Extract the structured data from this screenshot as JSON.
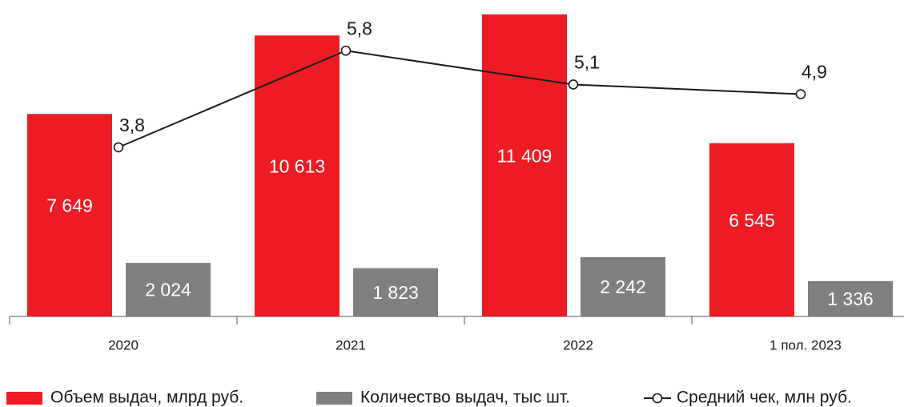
{
  "chart_data": {
    "type": "bar-line",
    "categories": [
      "2020",
      "2021",
      "2022",
      "1 пол. 2023"
    ],
    "series": [
      {
        "name": "Объем выдач, млрд руб.",
        "color": "#ed1c24",
        "type": "bar",
        "values": [
          7649,
          10613,
          11409,
          6545
        ],
        "value_labels": [
          "7 649",
          "10 613",
          "11 409",
          "6 545"
        ]
      },
      {
        "name": "Количество выдач, тыс шт.",
        "color": "#808083",
        "type": "bar",
        "values": [
          2024,
          1823,
          2242,
          1336
        ],
        "value_labels": [
          "2 024",
          "1 823",
          "2 242",
          "1 336"
        ]
      },
      {
        "name": "Средний чек, млн руб.",
        "color": "#1a1a1a",
        "type": "line",
        "axis": "y2",
        "values": [
          3.8,
          5.8,
          5.1,
          4.9
        ],
        "value_labels": [
          "3,8",
          "5,8",
          "5,1",
          "4,9"
        ]
      }
    ],
    "ylim": [
      0,
      11500
    ],
    "y2lim": [
      0.3,
      6.6
    ],
    "legend": "bottom"
  }
}
